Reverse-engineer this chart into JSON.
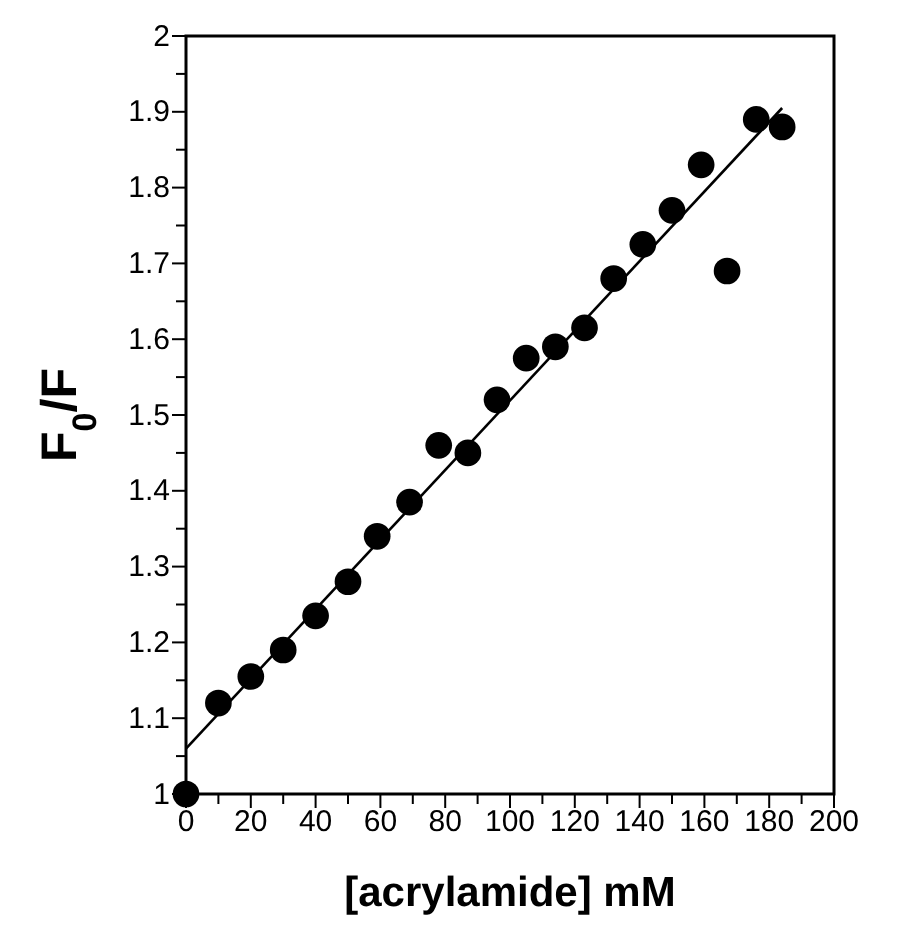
{
  "chart_data": {
    "type": "scatter",
    "xlabel": "[acrylamide] mM",
    "ylabel": "F$_{0}$/F",
    "xlim": [
      0,
      200
    ],
    "ylim": [
      1,
      2
    ],
    "xticks": [
      0,
      {
        "value": 10,
        "label": null
      },
      20,
      {
        "value": 30,
        "label": null
      },
      40,
      {
        "value": 50,
        "label": null
      },
      60,
      {
        "value": 70,
        "label": null
      },
      80,
      {
        "value": 90,
        "label": null
      },
      100,
      {
        "value": 110,
        "label": null
      },
      120,
      {
        "value": 130,
        "label": null
      },
      140,
      {
        "value": 150,
        "label": null
      },
      160,
      {
        "value": 170,
        "label": null
      },
      180,
      {
        "value": 190,
        "label": null
      },
      200
    ],
    "yticks": [
      1,
      {
        "value": 1.05,
        "label": null
      },
      1.1,
      {
        "value": 1.15,
        "label": null
      },
      1.2,
      {
        "value": 1.25,
        "label": null
      },
      1.3,
      {
        "value": 1.35,
        "label": null
      },
      1.4,
      {
        "value": 1.45,
        "label": null
      },
      1.5,
      {
        "value": 1.55,
        "label": null
      },
      1.6,
      {
        "value": 1.65,
        "label": null
      },
      1.7,
      {
        "value": 1.75,
        "label": null
      },
      1.8,
      {
        "value": 1.85,
        "label": null
      },
      1.9,
      {
        "value": 1.95,
        "label": null
      },
      2
    ],
    "marker": "circle",
    "series": [
      {
        "color": "#000000",
        "x": [
          0,
          10,
          20,
          30,
          40,
          50,
          59,
          69,
          78,
          87,
          96,
          105,
          114,
          123,
          132,
          141,
          150,
          159,
          167,
          176,
          184
        ],
        "values": [
          1.0,
          1.12,
          1.155,
          1.19,
          1.235,
          1.28,
          1.34,
          1.385,
          1.46,
          1.45,
          1.52,
          1.575,
          1.59,
          1.615,
          1.68,
          1.725,
          1.77,
          1.83,
          1.69,
          1.89,
          1.88
        ]
      },
      {
        "type": "line",
        "marker": "none",
        "color": "#000000",
        "x": [
          0,
          184
        ],
        "values": [
          1.06,
          1.905
        ]
      }
    ]
  }
}
